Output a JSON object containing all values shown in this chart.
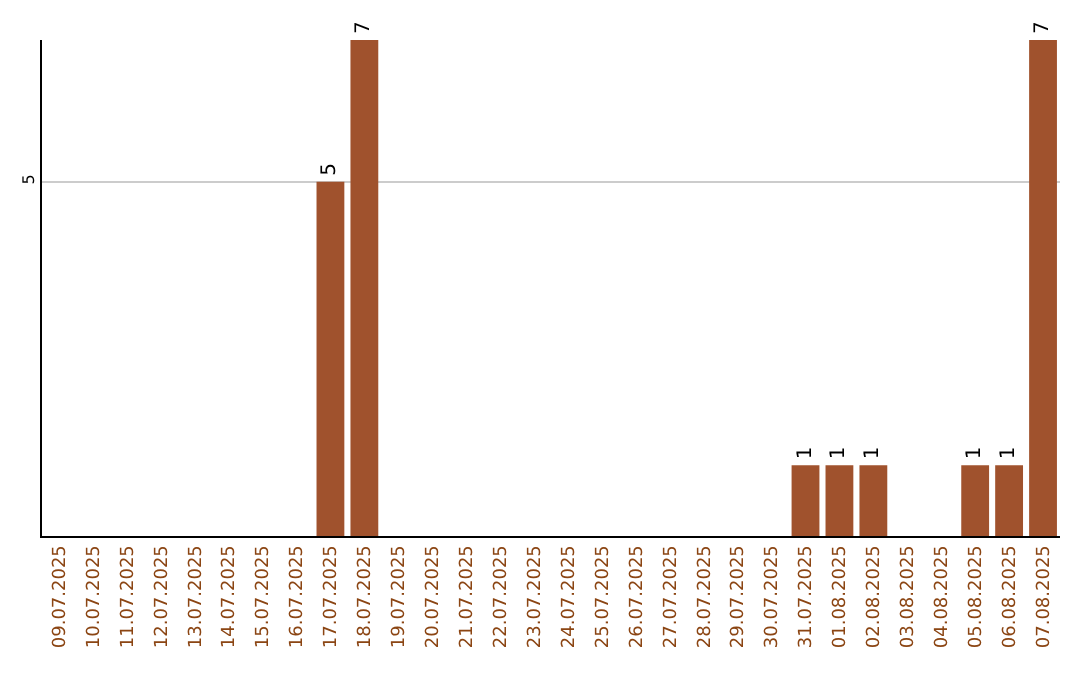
{
  "chart_data": {
    "type": "bar",
    "categories": [
      "09.07.2025",
      "10.07.2025",
      "11.07.2025",
      "12.07.2025",
      "13.07.2025",
      "14.07.2025",
      "15.07.2025",
      "16.07.2025",
      "17.07.2025",
      "18.07.2025",
      "19.07.2025",
      "20.07.2025",
      "21.07.2025",
      "22.07.2025",
      "23.07.2025",
      "24.07.2025",
      "25.07.2025",
      "26.07.2025",
      "27.07.2025",
      "28.07.2025",
      "29.07.2025",
      "30.07.2025",
      "31.07.2025",
      "01.08.2025",
      "02.08.2025",
      "03.08.2025",
      "04.08.2025",
      "05.08.2025",
      "06.08.2025",
      "07.08.2025"
    ],
    "values": [
      null,
      null,
      null,
      null,
      null,
      null,
      null,
      null,
      5,
      7,
      null,
      null,
      null,
      null,
      null,
      null,
      null,
      null,
      null,
      null,
      null,
      null,
      1,
      1,
      1,
      null,
      null,
      1,
      1,
      7
    ],
    "color": "#a0522d",
    "ylim": [
      0,
      7
    ],
    "yticks": [
      5
    ],
    "grid": "y",
    "data_labels": true
  }
}
